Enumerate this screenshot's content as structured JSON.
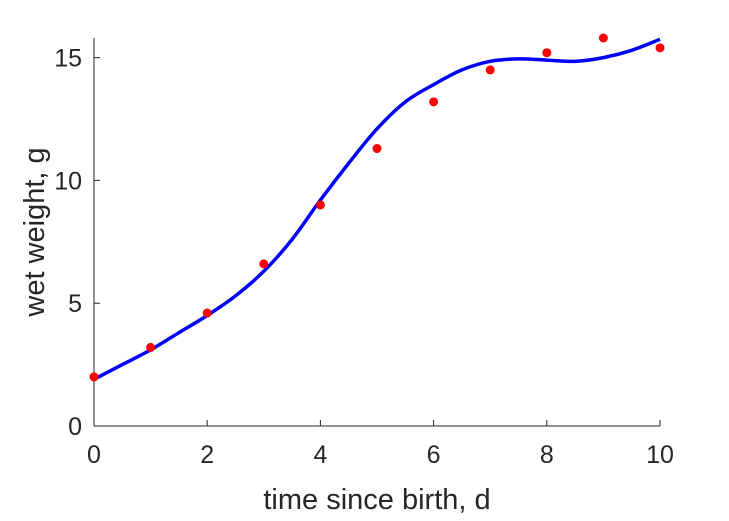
{
  "chart_data": {
    "type": "line+scatter",
    "title": "",
    "xlabel": "time since birth, d",
    "ylabel": "wet weight, g",
    "xlim": [
      0,
      10
    ],
    "ylim": [
      0,
      15.8
    ],
    "xticks": [
      0,
      2,
      4,
      6,
      8,
      10
    ],
    "yticks": [
      0,
      5,
      10,
      15
    ],
    "grid": false,
    "legend": "none",
    "series": [
      {
        "kind": "scatter",
        "color": "#ff0000",
        "x": [
          0,
          1,
          2,
          3,
          4,
          5,
          6,
          7,
          8,
          9,
          10
        ],
        "y": [
          2.0,
          3.2,
          4.6,
          6.6,
          9.0,
          11.3,
          13.2,
          14.5,
          15.2,
          15.8,
          15.4
        ]
      },
      {
        "kind": "line",
        "color": "#0000ff",
        "x": [
          0,
          0.5,
          1,
          1.5,
          2,
          2.5,
          3,
          3.5,
          4,
          4.5,
          5,
          5.5,
          6,
          6.5,
          7,
          7.5,
          8,
          8.5,
          9,
          9.5,
          10
        ],
        "y": [
          1.9,
          2.5,
          3.1,
          3.8,
          4.5,
          5.3,
          6.3,
          7.6,
          9.2,
          10.7,
          12.1,
          13.2,
          13.9,
          14.5,
          14.85,
          14.95,
          14.9,
          14.85,
          15.0,
          15.3,
          15.75
        ]
      }
    ]
  }
}
